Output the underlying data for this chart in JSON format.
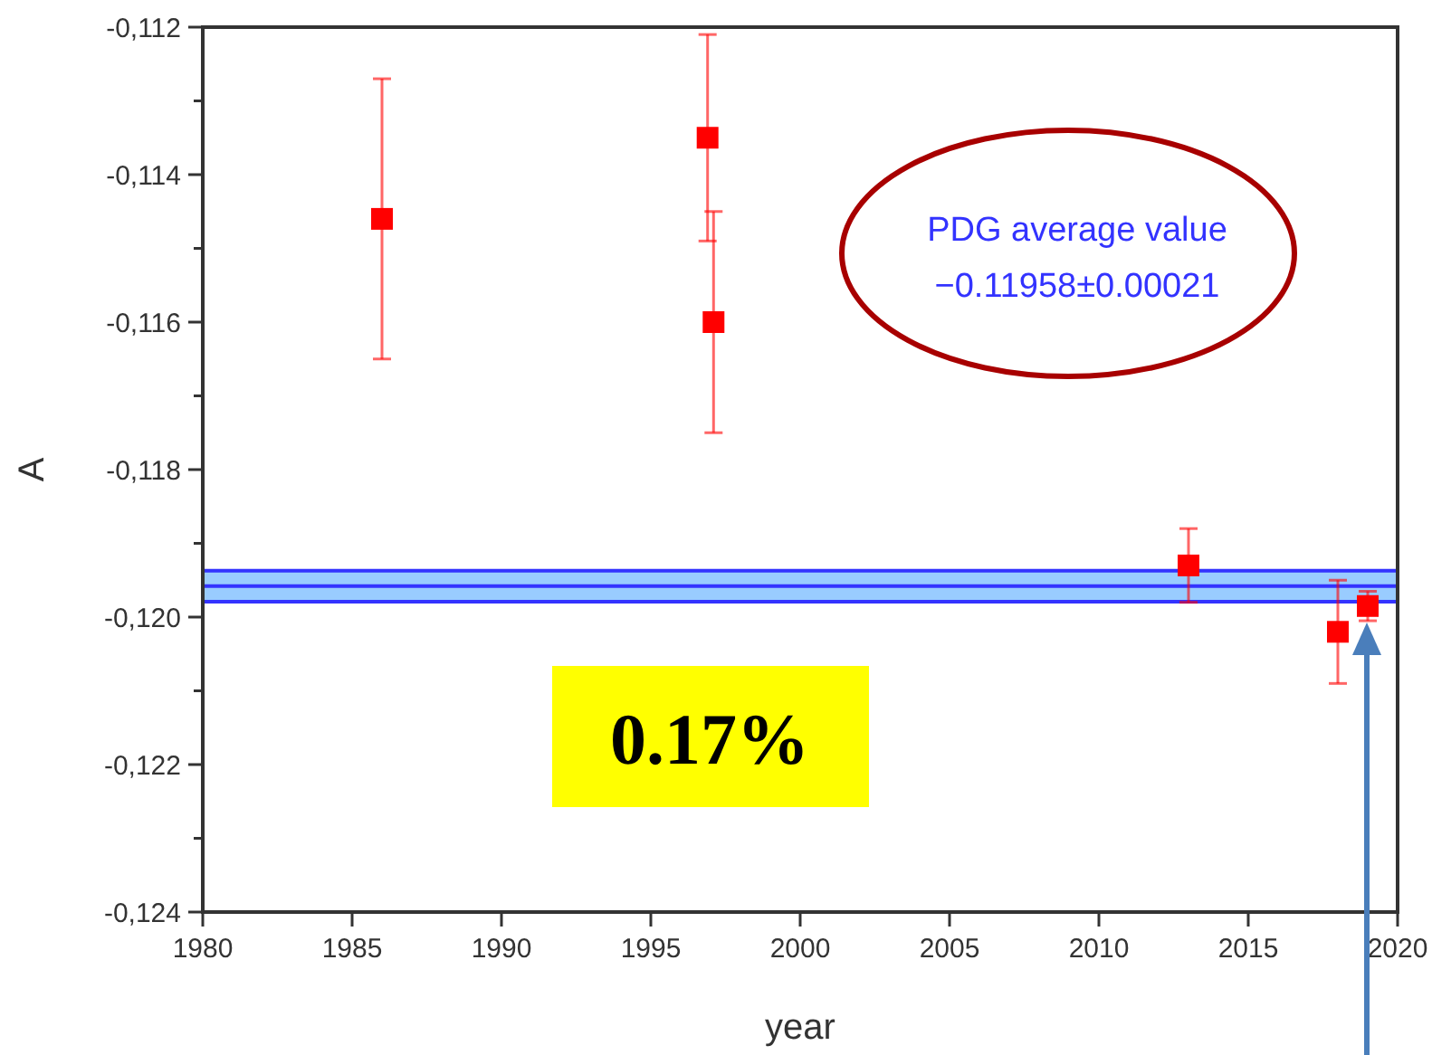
{
  "chart_data": {
    "type": "scatter",
    "xlabel": "year",
    "ylabel": "A",
    "x": [
      1986,
      1996.9,
      1997.1,
      2013,
      2018,
      2019
    ],
    "values": [
      -0.1146,
      -0.1135,
      -0.116,
      -0.1193,
      -0.1202,
      -0.11985
    ],
    "errors": [
      0.0019,
      0.0014,
      0.0015,
      0.0005,
      0.0007,
      0.0002
    ],
    "color": "#ff0000",
    "marker": "square",
    "grid": false,
    "xlim": [
      1980,
      2020
    ],
    "xticks": [
      1980,
      1985,
      1990,
      1995,
      2000,
      2005,
      2010,
      2015,
      2020
    ],
    "ylim": [
      -0.124,
      -0.112
    ],
    "yticks": [
      {
        "value": -0.124,
        "label": "-0,124"
      },
      {
        "value": -0.123,
        "label": null
      },
      {
        "value": -0.122,
        "label": "-0,122"
      },
      {
        "value": -0.121,
        "label": null
      },
      {
        "value": -0.12,
        "label": "-0,120"
      },
      {
        "value": -0.119,
        "label": null
      },
      {
        "value": -0.118,
        "label": "-0,118"
      },
      {
        "value": -0.117,
        "label": null
      },
      {
        "value": -0.116,
        "label": "-0,116"
      },
      {
        "value": -0.115,
        "label": null
      },
      {
        "value": -0.114,
        "label": "-0,114"
      },
      {
        "value": -0.113,
        "label": null
      },
      {
        "value": -0.112,
        "label": "-0,112"
      }
    ],
    "bands": [
      {
        "axis": "y",
        "from": -0.11979,
        "to": -0.11937,
        "color": "#99ccff"
      }
    ],
    "ref_lines": [
      {
        "axis": "y",
        "value": -0.11937,
        "color": "#3333ff"
      },
      {
        "axis": "y",
        "value": -0.11958,
        "color": "#3333ff"
      },
      {
        "axis": "y",
        "value": -0.11979,
        "color": "#3333ff"
      }
    ],
    "annotations": [
      "PDG average value",
      "−0.11958±0.00021",
      "0.17%"
    ]
  }
}
